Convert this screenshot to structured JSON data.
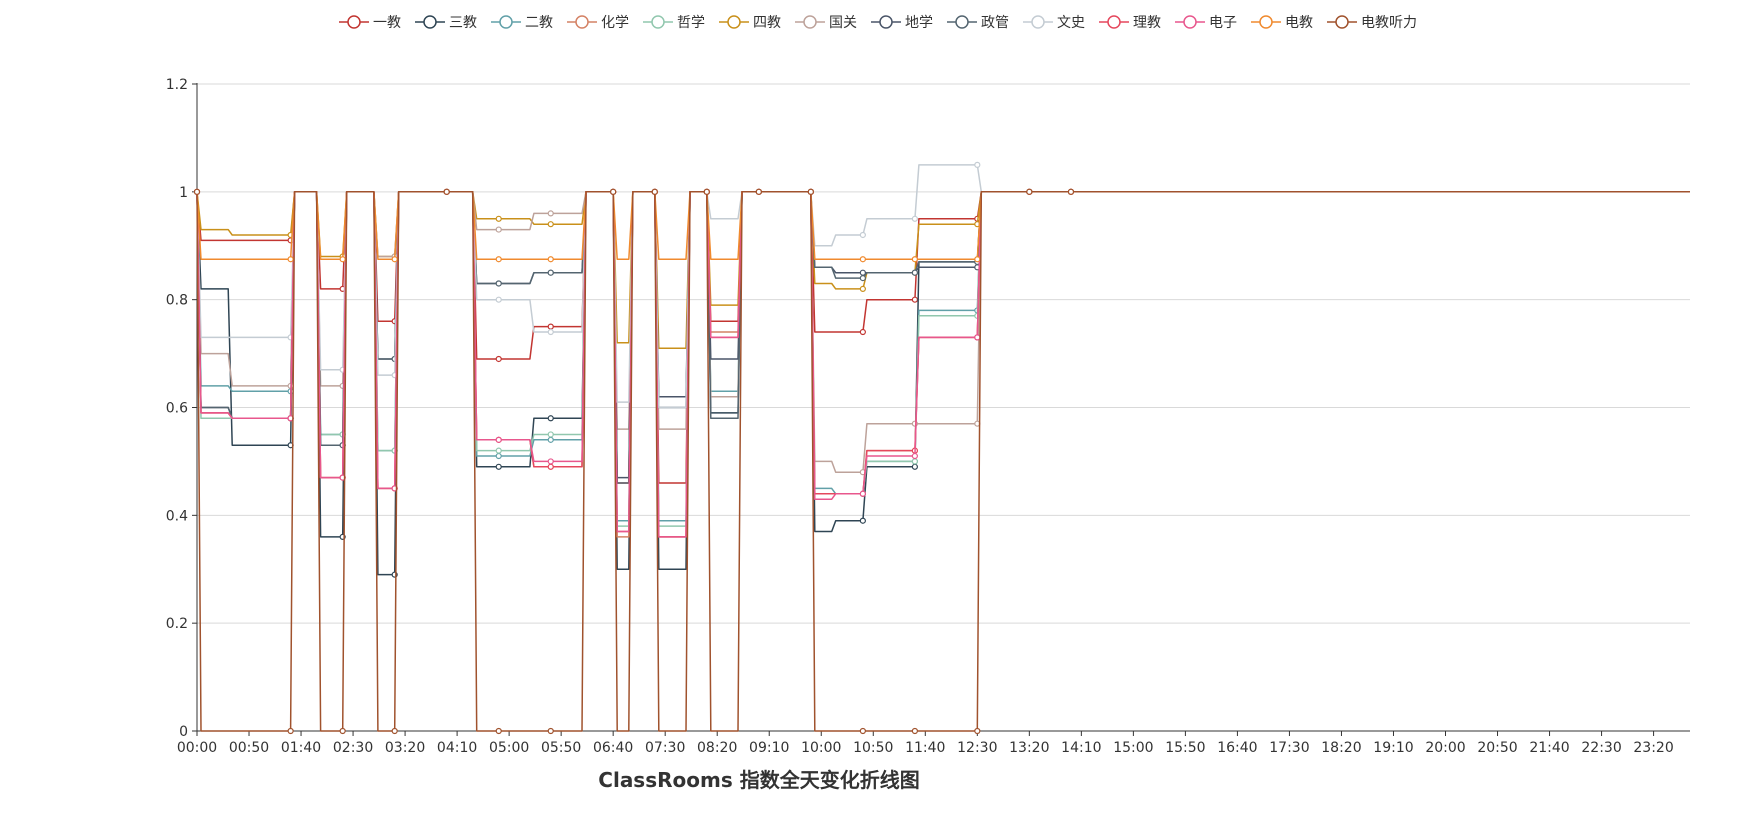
{
  "chart_data": {
    "type": "line",
    "title": "ClassRooms 指数全天变化折线图",
    "xlabel": "",
    "ylabel": "",
    "ylim": [
      0,
      1.2
    ],
    "yticks": [
      "0",
      "0.2",
      "0.4",
      "0.6",
      "0.8",
      "1",
      "1.2"
    ],
    "ytick_values": [
      0,
      0.2,
      0.4,
      0.6,
      0.8,
      1.0,
      1.2
    ],
    "xlim_minutes": [
      0,
      1435
    ],
    "xticks": [
      "00:00",
      "00:50",
      "01:40",
      "02:30",
      "03:20",
      "04:10",
      "05:00",
      "05:50",
      "06:40",
      "07:30",
      "08:20",
      "09:10",
      "10:00",
      "10:50",
      "11:40",
      "12:30",
      "13:20",
      "14:10",
      "15:00",
      "15:50",
      "16:40",
      "17:30",
      "18:20",
      "19:10",
      "20:00",
      "20:50",
      "21:40",
      "22:30",
      "23:20"
    ],
    "grid": true,
    "legend_position": "top-center",
    "sample_times": [
      "00:00",
      "00:30",
      "01:30",
      "01:55",
      "02:20",
      "02:50",
      "03:10",
      "03:40",
      "04:00",
      "04:25",
      "04:50",
      "05:20",
      "05:40",
      "06:10",
      "06:40",
      "06:55",
      "07:20",
      "07:50",
      "08:10",
      "08:40",
      "09:00",
      "09:20",
      "09:50",
      "10:10",
      "10:40",
      "11:05",
      "11:30",
      "12:00",
      "12:30",
      "12:55",
      "13:20",
      "13:35",
      "14:00",
      "23:55"
    ],
    "sample_minutes": [
      0,
      30,
      90,
      115,
      140,
      170,
      190,
      220,
      240,
      265,
      290,
      320,
      340,
      370,
      400,
      415,
      440,
      470,
      490,
      520,
      540,
      560,
      590,
      610,
      640,
      665,
      690,
      720,
      750,
      775,
      800,
      815,
      840,
      1435
    ],
    "series": [
      {
        "name": "一教",
        "color": "#c23531",
        "values": [
          1,
          0.91,
          0.91,
          1,
          0.82,
          1,
          0.76,
          1,
          1,
          1,
          0.69,
          0.69,
          0.75,
          0.75,
          1,
          0.46,
          1,
          0.46,
          1,
          0.76,
          1,
          1,
          1,
          0.74,
          0.74,
          0.8,
          0.8,
          0.95,
          0.95,
          1,
          1,
          1,
          1,
          1
        ]
      },
      {
        "name": "三教",
        "color": "#2f4554",
        "values": [
          1,
          0.82,
          0.53,
          1,
          0.36,
          1,
          0.29,
          1,
          1,
          1,
          0.49,
          0.49,
          0.58,
          0.58,
          1,
          0.3,
          1,
          0.3,
          1,
          0.59,
          1,
          1,
          1,
          0.37,
          0.39,
          0.49,
          0.49,
          0.87,
          0.87,
          1,
          1,
          1,
          1,
          1
        ]
      },
      {
        "name": "二教",
        "color": "#61a0a8",
        "values": [
          1,
          0.64,
          0.63,
          1,
          0.55,
          1,
          0.52,
          1,
          1,
          1,
          0.51,
          0.51,
          0.54,
          0.54,
          1,
          0.39,
          1,
          0.39,
          1,
          0.63,
          1,
          1,
          1,
          0.45,
          0.44,
          0.5,
          0.5,
          0.78,
          0.78,
          1,
          1,
          1,
          1,
          1
        ]
      },
      {
        "name": "化学",
        "color": "#d48265",
        "values": [
          1,
          0.59,
          0.58,
          1,
          0.47,
          1,
          0.45,
          1,
          1,
          1,
          0.54,
          0.54,
          0.49,
          0.49,
          1,
          0.36,
          1,
          0.36,
          1,
          0.74,
          1,
          1,
          1,
          0.44,
          0.44,
          0.52,
          0.52,
          0.73,
          0.73,
          1,
          1,
          1,
          1,
          1
        ]
      },
      {
        "name": "哲学",
        "color": "#91c7ae",
        "values": [
          1,
          0.58,
          0.58,
          1,
          0.55,
          1,
          0.52,
          1,
          1,
          1,
          0.52,
          0.52,
          0.55,
          0.55,
          1,
          0.38,
          1,
          0.38,
          1,
          0.62,
          1,
          1,
          1,
          0.44,
          0.44,
          0.5,
          0.5,
          0.77,
          0.77,
          1,
          1,
          1,
          1,
          1
        ]
      },
      {
        "name": "四教",
        "color": "#c9901a",
        "values": [
          1,
          0.93,
          0.92,
          1,
          0.88,
          1,
          0.88,
          1,
          1,
          1,
          0.95,
          0.95,
          0.94,
          0.94,
          1,
          0.72,
          1,
          0.71,
          1,
          0.79,
          1,
          1,
          1,
          0.83,
          0.82,
          0.85,
          0.85,
          0.94,
          0.94,
          1,
          1,
          1,
          1,
          1
        ]
      },
      {
        "name": "国关",
        "color": "#bda29a",
        "values": [
          1,
          0.7,
          0.64,
          1,
          0.64,
          1,
          0.88,
          1,
          1,
          1,
          0.93,
          0.93,
          0.96,
          0.96,
          1,
          0.56,
          1,
          0.56,
          1,
          0.62,
          1,
          1,
          1,
          0.5,
          0.48,
          0.57,
          0.57,
          0.57,
          0.57,
          1,
          1,
          1,
          1,
          1
        ]
      },
      {
        "name": "地学",
        "color": "#4a5568",
        "values": [
          1,
          0.6,
          0.58,
          1,
          0.53,
          1,
          0.69,
          1,
          1,
          1,
          0.83,
          0.83,
          0.85,
          0.85,
          1,
          0.47,
          1,
          0.62,
          1,
          0.69,
          1,
          1,
          1,
          0.86,
          0.85,
          0.85,
          0.85,
          0.86,
          0.86,
          1,
          1,
          1,
          1,
          1
        ]
      },
      {
        "name": "政管",
        "color": "#546570",
        "values": [
          1,
          0.6,
          0.58,
          1,
          0.53,
          1,
          0.69,
          1,
          1,
          1,
          0.83,
          0.83,
          0.85,
          0.85,
          1,
          0.46,
          1,
          0.6,
          1,
          0.58,
          1,
          1,
          1,
          0.86,
          0.84,
          0.85,
          0.85,
          0.87,
          0.87,
          1,
          1,
          1,
          1,
          1
        ]
      },
      {
        "name": "文史",
        "color": "#c4ccd3",
        "values": [
          1,
          0.73,
          0.73,
          1,
          0.67,
          1,
          0.66,
          1,
          1,
          1,
          0.8,
          0.8,
          0.74,
          0.74,
          1,
          0.61,
          1,
          0.6,
          1,
          0.95,
          1,
          1,
          1,
          0.9,
          0.92,
          0.95,
          0.95,
          1.05,
          1.05,
          1,
          1,
          1,
          1,
          1
        ]
      },
      {
        "name": "理教",
        "color": "#e5475d",
        "values": [
          1,
          0.59,
          0.58,
          1,
          0.47,
          1,
          0.45,
          1,
          1,
          1,
          0.54,
          0.54,
          0.49,
          0.49,
          1,
          0.37,
          1,
          0.36,
          1,
          0.73,
          1,
          1,
          1,
          0.44,
          0.44,
          0.52,
          0.52,
          0.73,
          0.73,
          1,
          1,
          1,
          1,
          1
        ]
      },
      {
        "name": "电子",
        "color": "#e8578d",
        "values": [
          1,
          0.59,
          0.58,
          1,
          0.47,
          1,
          0.45,
          1,
          1,
          1,
          0.54,
          0.54,
          0.5,
          0.5,
          1,
          0.37,
          1,
          0.36,
          1,
          0.73,
          1,
          1,
          1,
          0.43,
          0.44,
          0.51,
          0.51,
          0.73,
          0.73,
          1,
          1,
          1,
          1,
          1
        ]
      },
      {
        "name": "电教",
        "color": "#f08a2e",
        "values": [
          1,
          0.875,
          0.875,
          1,
          0.875,
          1,
          0.875,
          1,
          1,
          1,
          0.875,
          0.875,
          0.875,
          0.875,
          1,
          0.875,
          1,
          0.875,
          1,
          0.875,
          1,
          1,
          1,
          0.875,
          0.875,
          0.875,
          0.875,
          0.875,
          0.875,
          1,
          1,
          1,
          1,
          1
        ]
      },
      {
        "name": "电教听力",
        "color": "#a0522d",
        "values": [
          1,
          0,
          0,
          1,
          0,
          1,
          0,
          1,
          1,
          1,
          0,
          0,
          0,
          0,
          1,
          0,
          1,
          0,
          1,
          0,
          1,
          1,
          1,
          0,
          0,
          0,
          0,
          0,
          0,
          1,
          1,
          1,
          1,
          1
        ]
      }
    ]
  }
}
